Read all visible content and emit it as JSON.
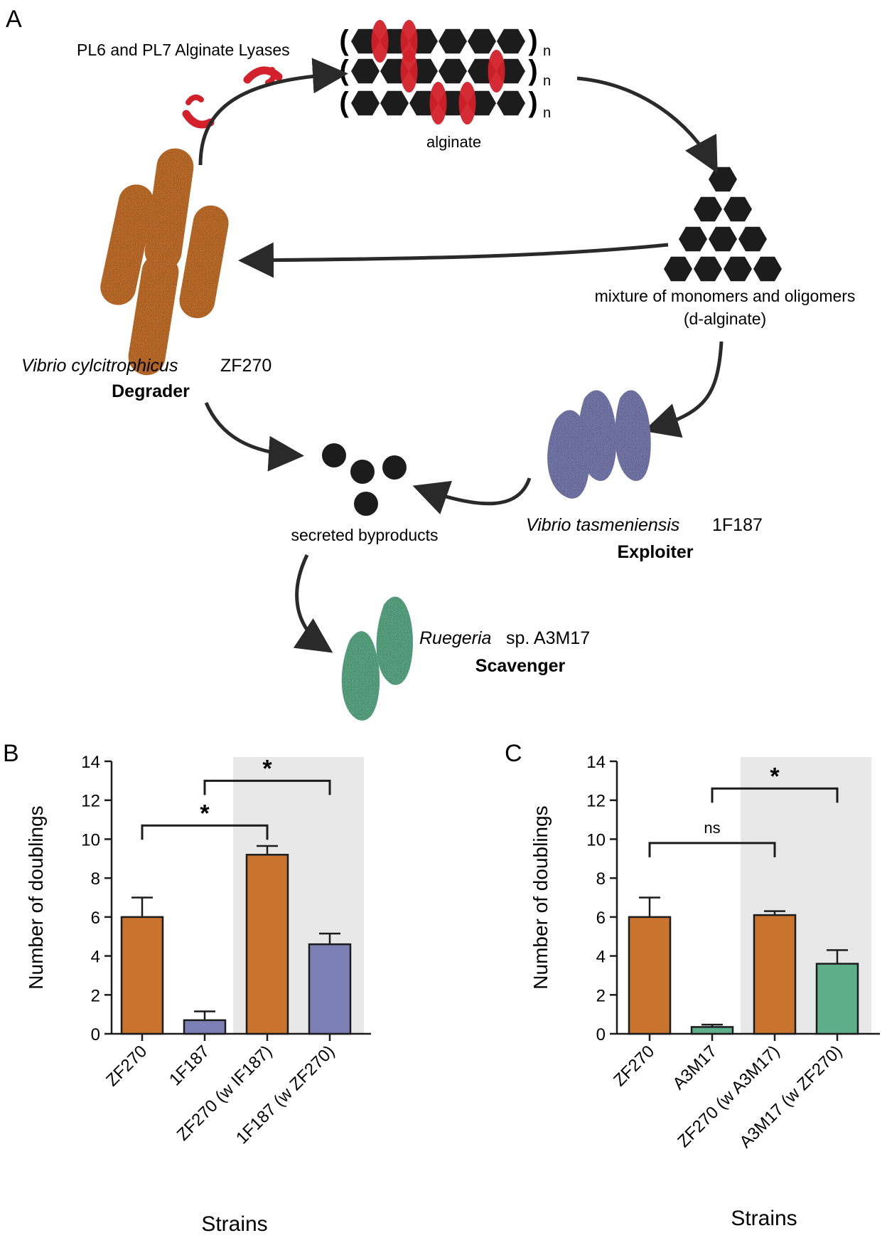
{
  "panel_a": {
    "label": "A",
    "enzyme_label": "PL6 and PL7 Alginate Lyases",
    "polymer_label": "alginate",
    "repeat_subscript": "n",
    "mixture_label_line1": "mixture of monomers and oligomers",
    "mixture_label_line2": "(d-alginate)",
    "degrader_species": "Vibrio cylcitrophicus",
    "degrader_strain": "ZF270",
    "degrader_role": "Degrader",
    "exploiter_species": "Vibrio tasmeniensis",
    "exploiter_strain": "1F187",
    "exploiter_role": "Exploiter",
    "scavenger_species": "Ruegeria",
    "scavenger_strain": "sp. A3M17",
    "scavenger_role": "Scavenger",
    "byproducts_label": "secreted byproducts",
    "colors": {
      "degrader": "#c8732e",
      "exploiter": "#7b7fb3",
      "scavenger": "#5fae8a",
      "enzyme": "#d3202a",
      "monomer": "#1c1c1c"
    }
  },
  "chart_data": [
    {
      "panel_label": "B",
      "type": "bar",
      "ylabel": "Number of doublings",
      "xlabel": "Strains",
      "ylim": [
        0,
        14
      ],
      "yticks": [
        0,
        2,
        4,
        6,
        8,
        10,
        12,
        14
      ],
      "categories": [
        "ZF270",
        "1F187",
        "ZF270 (w IF187)",
        "1F187 (w ZF270)"
      ],
      "values": [
        6.0,
        0.7,
        9.2,
        4.6
      ],
      "errors": [
        1.0,
        0.45,
        0.45,
        0.55
      ],
      "bar_colors": [
        "#c8732e",
        "#7b7fb3",
        "#c8732e",
        "#7b7fb3"
      ],
      "shaded_categories": [
        2,
        3
      ],
      "significance": [
        {
          "from": 1,
          "to": 3,
          "level": 13.0,
          "label": "*"
        },
        {
          "from": 0,
          "to": 2,
          "level": 10.7,
          "label": "*"
        }
      ]
    },
    {
      "panel_label": "C",
      "type": "bar",
      "ylabel": "Number of doublings",
      "xlabel": "Strains",
      "ylim": [
        0,
        14
      ],
      "yticks": [
        0,
        2,
        4,
        6,
        8,
        10,
        12,
        14
      ],
      "categories": [
        "ZF270",
        "A3M17",
        "ZF270 (w A3M17)",
        "A3M17 (w ZF270)"
      ],
      "values": [
        6.0,
        0.35,
        6.1,
        3.6
      ],
      "errors": [
        1.0,
        0.12,
        0.2,
        0.7
      ],
      "bar_colors": [
        "#c8732e",
        "#5fae8a",
        "#c8732e",
        "#5fae8a"
      ],
      "shaded_categories": [
        2,
        3
      ],
      "significance": [
        {
          "from": 1,
          "to": 3,
          "level": 12.6,
          "label": "*"
        },
        {
          "from": 0,
          "to": 2,
          "level": 9.8,
          "label": "ns"
        }
      ]
    }
  ]
}
